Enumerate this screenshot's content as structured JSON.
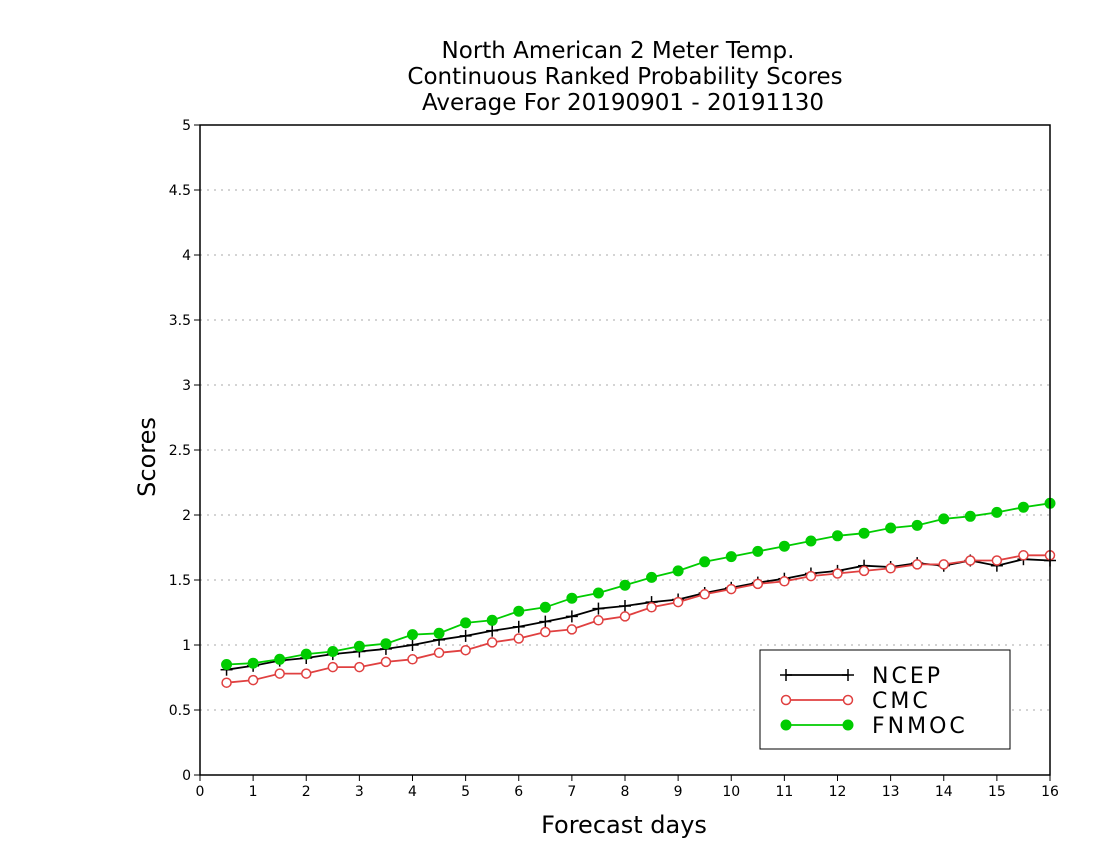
{
  "chart_data": {
    "type": "line",
    "title": [
      "North American 2 Meter Temp.",
      "Continuous Ranked Probability Scores",
      "Average For 20190901 - 20191130"
    ],
    "xlabel": "Forecast days",
    "ylabel": "Scores",
    "xlim": [
      0,
      16
    ],
    "ylim": [
      0,
      5
    ],
    "x_ticks": [
      0,
      1,
      2,
      3,
      4,
      5,
      6,
      7,
      8,
      9,
      10,
      11,
      12,
      13,
      14,
      15,
      16
    ],
    "y_ticks": [
      0,
      0.5,
      1,
      1.5,
      2,
      2.5,
      3,
      3.5,
      4,
      4.5,
      5
    ],
    "x_tick_labels": [
      "0",
      "1",
      "2",
      "3",
      "4",
      "5",
      "6",
      "7",
      "8",
      "9",
      "10",
      "11",
      "12",
      "13",
      "14",
      "15",
      "16"
    ],
    "y_tick_labels": [
      "0",
      "0.5",
      "1",
      "1.5",
      "2",
      "2.5",
      "3",
      "3.5",
      "4",
      "4.5",
      "5"
    ],
    "grid": true,
    "legend_position": "bottom-right",
    "x": [
      0.5,
      1,
      1.5,
      2,
      2.5,
      3,
      3.5,
      4,
      4.5,
      5,
      5.5,
      6,
      6.5,
      7,
      7.5,
      8,
      8.5,
      9,
      9.5,
      10,
      10.5,
      11,
      11.5,
      12,
      12.5,
      13,
      13.5,
      14,
      14.5,
      15,
      15.5,
      16
    ],
    "series": [
      {
        "name": "NCEP",
        "color": "#000000",
        "marker": "plus",
        "values": [
          0.81,
          0.84,
          0.88,
          0.9,
          0.93,
          0.95,
          0.97,
          1.0,
          1.04,
          1.07,
          1.11,
          1.14,
          1.18,
          1.22,
          1.28,
          1.3,
          1.33,
          1.35,
          1.4,
          1.44,
          1.48,
          1.51,
          1.55,
          1.57,
          1.61,
          1.6,
          1.63,
          1.61,
          1.65,
          1.61,
          1.66,
          1.65
        ]
      },
      {
        "name": "CMC",
        "color": "#e04040",
        "marker": "open-circle",
        "values": [
          0.71,
          0.73,
          0.78,
          0.78,
          0.83,
          0.83,
          0.87,
          0.89,
          0.94,
          0.96,
          1.02,
          1.05,
          1.1,
          1.12,
          1.19,
          1.22,
          1.29,
          1.33,
          1.39,
          1.43,
          1.47,
          1.49,
          1.53,
          1.55,
          1.57,
          1.59,
          1.62,
          1.62,
          1.65,
          1.65,
          1.69,
          1.69
        ]
      },
      {
        "name": "FNMOC",
        "color": "#00cc00",
        "marker": "filled-circle",
        "values": [
          0.85,
          0.86,
          0.89,
          0.93,
          0.95,
          0.99,
          1.01,
          1.08,
          1.09,
          1.17,
          1.19,
          1.26,
          1.29,
          1.36,
          1.4,
          1.46,
          1.52,
          1.57,
          1.64,
          1.68,
          1.72,
          1.76,
          1.8,
          1.84,
          1.86,
          1.9,
          1.92,
          1.97,
          1.99,
          2.02,
          2.06,
          2.09
        ]
      }
    ]
  }
}
